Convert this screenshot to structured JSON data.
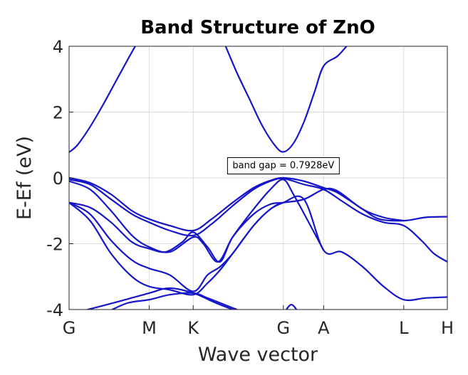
{
  "chart_data": {
    "type": "line",
    "title": "Band Structure of ZnO",
    "xlabel": "Wave vector",
    "ylabel": "E-Ef (eV)",
    "ylim": [
      -4,
      4
    ],
    "yticks": [
      -4,
      -2,
      0,
      2,
      4
    ],
    "xlim": [
      0,
      9.02
    ],
    "kpoints": [
      {
        "label": "G",
        "x": 0
      },
      {
        "label": "M",
        "x": 1.91
      },
      {
        "label": "K",
        "x": 2.96
      },
      {
        "label": "G",
        "x": 5.11
      },
      {
        "label": "A",
        "x": 6.07
      },
      {
        "label": "L",
        "x": 7.98
      },
      {
        "label": "H",
        "x": 9.02
      }
    ],
    "grid": true,
    "line_color": "#1515c9",
    "annotation": {
      "text": "band gap = 0.7928eV",
      "x": 5.11,
      "y": 0.4
    },
    "series": [
      {
        "points": [
          [
            0,
            0.78
          ],
          [
            0.2,
            1.0
          ],
          [
            0.5,
            1.55
          ],
          [
            0.8,
            2.2
          ],
          [
            1.1,
            2.9
          ],
          [
            1.4,
            3.6
          ],
          [
            1.6,
            4.05
          ]
        ]
      },
      {
        "points": [
          [
            3.7,
            4.1
          ],
          [
            4.0,
            3.2
          ],
          [
            4.3,
            2.4
          ],
          [
            4.6,
            1.6
          ],
          [
            4.9,
            1.0
          ],
          [
            5.11,
            0.79
          ],
          [
            5.35,
            1.05
          ],
          [
            5.6,
            1.7
          ],
          [
            5.85,
            2.6
          ],
          [
            6.07,
            3.4
          ],
          [
            6.4,
            3.7
          ],
          [
            6.65,
            4.05
          ]
        ]
      },
      {
        "points": [
          [
            0,
            -0.0
          ],
          [
            0.5,
            -0.15
          ],
          [
            1.0,
            -0.5
          ],
          [
            1.5,
            -1.0
          ],
          [
            1.91,
            -1.25
          ],
          [
            2.4,
            -1.45
          ],
          [
            2.96,
            -1.6
          ],
          [
            3.4,
            -1.25
          ],
          [
            3.9,
            -0.75
          ],
          [
            4.4,
            -0.3
          ],
          [
            4.8,
            -0.08
          ],
          [
            5.11,
            0.0
          ],
          [
            5.6,
            -0.1
          ],
          [
            6.07,
            -0.3
          ],
          [
            6.4,
            -0.45
          ],
          [
            7.0,
            -0.95
          ],
          [
            7.4,
            -1.25
          ],
          [
            7.98,
            -1.3
          ],
          [
            8.5,
            -1.2
          ],
          [
            9.02,
            -1.18
          ]
        ]
      },
      {
        "points": [
          [
            0,
            -0.05
          ],
          [
            0.5,
            -0.2
          ],
          [
            1.0,
            -0.65
          ],
          [
            1.5,
            -1.1
          ],
          [
            1.91,
            -1.35
          ],
          [
            2.4,
            -1.6
          ],
          [
            2.96,
            -1.75
          ],
          [
            3.4,
            -1.4
          ],
          [
            3.9,
            -0.85
          ],
          [
            4.4,
            -0.35
          ],
          [
            4.8,
            -0.1
          ],
          [
            5.11,
            -0.02
          ],
          [
            5.6,
            -0.2
          ],
          [
            6.07,
            -0.35
          ],
          [
            6.5,
            -0.7
          ],
          [
            7.0,
            -1.1
          ],
          [
            7.5,
            -1.35
          ],
          [
            7.98,
            -1.45
          ],
          [
            8.4,
            -1.9
          ],
          [
            8.7,
            -2.3
          ],
          [
            9.02,
            -2.55
          ]
        ]
      },
      {
        "points": [
          [
            0,
            -0.1
          ],
          [
            0.5,
            -0.35
          ],
          [
            1.0,
            -1.0
          ],
          [
            1.5,
            -1.75
          ],
          [
            1.91,
            -2.1
          ],
          [
            2.4,
            -2.25
          ],
          [
            2.96,
            -1.8
          ],
          [
            3.2,
            -2.0
          ],
          [
            3.55,
            -2.55
          ],
          [
            3.9,
            -1.8
          ],
          [
            4.4,
            -0.95
          ],
          [
            4.8,
            -0.35
          ],
          [
            5.11,
            -0.05
          ],
          [
            5.35,
            -0.5
          ],
          [
            5.65,
            -1.2
          ],
          [
            6.07,
            -2.2
          ]
        ]
      },
      {
        "points": [
          [
            0,
            -0.75
          ],
          [
            0.5,
            -0.9
          ],
          [
            1.0,
            -1.35
          ],
          [
            1.5,
            -1.95
          ],
          [
            1.91,
            -2.15
          ],
          [
            2.3,
            -2.25
          ],
          [
            2.7,
            -1.95
          ],
          [
            2.96,
            -1.65
          ],
          [
            3.3,
            -2.1
          ],
          [
            3.6,
            -2.55
          ],
          [
            3.9,
            -1.8
          ],
          [
            4.4,
            -1.1
          ],
          [
            4.8,
            -0.8
          ],
          [
            5.11,
            -0.75
          ],
          [
            5.6,
            -0.65
          ],
          [
            6.07,
            -0.35
          ],
          [
            6.4,
            -0.4
          ],
          [
            7.0,
            -0.95
          ],
          [
            7.5,
            -1.2
          ],
          [
            7.98,
            -1.3
          ]
        ]
      },
      {
        "points": [
          [
            0,
            -0.75
          ],
          [
            0.5,
            -1.1
          ],
          [
            1.0,
            -1.9
          ],
          [
            1.5,
            -2.5
          ],
          [
            1.91,
            -2.75
          ],
          [
            2.4,
            -2.95
          ],
          [
            2.96,
            -3.45
          ],
          [
            3.3,
            -2.95
          ],
          [
            3.6,
            -2.7
          ],
          [
            3.9,
            -2.3
          ],
          [
            4.4,
            -1.45
          ],
          [
            4.8,
            -0.95
          ],
          [
            5.11,
            -0.75
          ],
          [
            5.6,
            -0.65
          ],
          [
            6.07,
            -2.2
          ],
          [
            6.5,
            -2.25
          ],
          [
            7.0,
            -2.7
          ],
          [
            7.5,
            -3.3
          ],
          [
            7.98,
            -3.7
          ],
          [
            8.5,
            -3.65
          ],
          [
            9.02,
            -3.62
          ]
        ]
      },
      {
        "points": [
          [
            0,
            -0.75
          ],
          [
            0.5,
            -1.3
          ],
          [
            1.0,
            -2.3
          ],
          [
            1.5,
            -3.0
          ],
          [
            1.91,
            -3.3
          ],
          [
            2.4,
            -3.4
          ],
          [
            2.96,
            -3.55
          ],
          [
            3.3,
            -3.2
          ],
          [
            3.6,
            -2.8
          ],
          [
            3.9,
            -2.3
          ],
          [
            4.4,
            -1.45
          ],
          [
            4.8,
            -0.95
          ],
          [
            5.11,
            -0.75
          ]
        ]
      },
      {
        "points": [
          [
            0.95,
            -4.05
          ],
          [
            1.4,
            -3.8
          ],
          [
            1.91,
            -3.7
          ],
          [
            2.4,
            -3.55
          ],
          [
            2.96,
            -3.5
          ],
          [
            3.3,
            -3.65
          ],
          [
            3.7,
            -3.85
          ],
          [
            4.1,
            -4.05
          ]
        ]
      },
      {
        "points": [
          [
            0,
            -4.15
          ],
          [
            0.6,
            -3.95
          ],
          [
            1.2,
            -3.75
          ],
          [
            1.91,
            -3.5
          ],
          [
            2.4,
            -3.35
          ],
          [
            2.96,
            -3.5
          ],
          [
            3.5,
            -3.8
          ],
          [
            4.0,
            -4.05
          ]
        ]
      },
      {
        "points": [
          [
            5.11,
            -4.15
          ],
          [
            5.3,
            -3.85
          ],
          [
            5.5,
            -4.15
          ]
        ]
      }
    ]
  }
}
